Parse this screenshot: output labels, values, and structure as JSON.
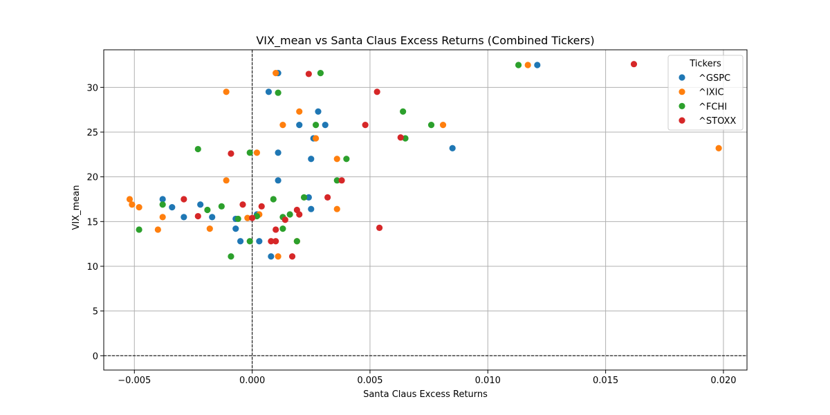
{
  "chart_data": {
    "type": "scatter",
    "title": "VIX_mean vs Santa Claus Excess Returns (Combined Tickers)",
    "xlabel": "Santa Claus Excess Returns",
    "ylabel": "VIX_mean",
    "xlim": [
      -0.0063,
      0.021
    ],
    "ylim": [
      -1.6,
      34.2
    ],
    "xticks": [
      -0.005,
      0.0,
      0.005,
      0.01,
      0.015,
      0.02
    ],
    "xtick_labels": [
      "−0.005",
      "0.000",
      "0.005",
      "0.010",
      "0.015",
      "0.020"
    ],
    "yticks": [
      0,
      5,
      10,
      15,
      20,
      25,
      30
    ],
    "ytick_labels": [
      "0",
      "5",
      "10",
      "15",
      "20",
      "25",
      "30"
    ],
    "grid": true,
    "reference_lines": {
      "x": 0,
      "y": 0
    },
    "legend": {
      "title": "Tickers",
      "placement": "top-right"
    },
    "series": [
      {
        "name": "^GSPC",
        "color": "#1f77b4",
        "points": [
          [
            0.0011,
            31.6
          ],
          [
            0.0007,
            29.5
          ],
          [
            0.0121,
            32.5
          ],
          [
            0.0085,
            23.2
          ],
          [
            0.002,
            25.8
          ],
          [
            0.0031,
            25.8
          ],
          [
            0.0028,
            27.3
          ],
          [
            0.0026,
            24.3
          ],
          [
            0.0025,
            22.0
          ],
          [
            0.0011,
            22.7
          ],
          [
            0.0011,
            19.6
          ],
          [
            -0.0038,
            17.5
          ],
          [
            -0.0034,
            16.6
          ],
          [
            -0.0022,
            16.9
          ],
          [
            -0.0029,
            15.5
          ],
          [
            -0.0017,
            15.5
          ],
          [
            -0.0007,
            15.3
          ],
          [
            0.0002,
            15.8
          ],
          [
            0.0024,
            17.7
          ],
          [
            0.0025,
            16.4
          ],
          [
            -0.0007,
            14.2
          ],
          [
            -0.0005,
            12.8
          ],
          [
            0.0003,
            12.8
          ],
          [
            0.0008,
            11.1
          ]
        ]
      },
      {
        "name": "^IXIC",
        "color": "#ff7f0e",
        "points": [
          [
            0.001,
            31.6
          ],
          [
            -0.0011,
            29.5
          ],
          [
            0.0117,
            32.5
          ],
          [
            0.0198,
            23.2
          ],
          [
            0.002,
            27.3
          ],
          [
            0.0013,
            25.8
          ],
          [
            0.0081,
            25.8
          ],
          [
            0.0027,
            24.3
          ],
          [
            0.0036,
            22.0
          ],
          [
            0.0002,
            22.7
          ],
          [
            -0.0011,
            19.6
          ],
          [
            -0.0052,
            17.5
          ],
          [
            -0.0051,
            16.9
          ],
          [
            -0.0048,
            16.6
          ],
          [
            -0.0038,
            15.5
          ],
          [
            0.0003,
            15.8
          ],
          [
            -0.0002,
            15.4
          ],
          [
            0.0036,
            16.4
          ],
          [
            -0.004,
            14.1
          ],
          [
            -0.0018,
            14.2
          ],
          [
            0.0019,
            12.8
          ],
          [
            0.0011,
            11.1
          ]
        ]
      },
      {
        "name": "^FCHI",
        "color": "#2ca02c",
        "points": [
          [
            0.0029,
            31.6
          ],
          [
            0.0011,
            29.4
          ],
          [
            0.0113,
            32.5
          ],
          [
            0.0064,
            27.3
          ],
          [
            0.0027,
            25.8
          ],
          [
            0.0076,
            25.8
          ],
          [
            0.0065,
            24.3
          ],
          [
            -0.0023,
            23.1
          ],
          [
            -0.0001,
            22.7
          ],
          [
            0.004,
            22.0
          ],
          [
            0.0036,
            19.6
          ],
          [
            -0.0038,
            16.9
          ],
          [
            -0.0013,
            16.7
          ],
          [
            -0.0019,
            16.3
          ],
          [
            0.0009,
            17.5
          ],
          [
            0.0022,
            17.7
          ],
          [
            0.0016,
            15.8
          ],
          [
            0.0013,
            15.5
          ],
          [
            -0.0006,
            15.3
          ],
          [
            0.0002,
            15.6
          ],
          [
            -0.0048,
            14.1
          ],
          [
            0.0013,
            14.2
          ],
          [
            -0.0001,
            12.8
          ],
          [
            0.0019,
            12.8
          ],
          [
            -0.0009,
            11.1
          ]
        ]
      },
      {
        "name": "^STOXX",
        "color": "#d62728",
        "points": [
          [
            0.0024,
            31.5
          ],
          [
            0.0053,
            29.5
          ],
          [
            0.0162,
            32.6
          ],
          [
            0.0048,
            25.8
          ],
          [
            0.0063,
            24.4
          ],
          [
            -0.0009,
            22.6
          ],
          [
            0.0038,
            19.6
          ],
          [
            -0.0029,
            17.5
          ],
          [
            0.0032,
            17.7
          ],
          [
            -0.0004,
            16.9
          ],
          [
            0.0004,
            16.7
          ],
          [
            0.0019,
            16.3
          ],
          [
            -0.0023,
            15.6
          ],
          [
            0.002,
            15.8
          ],
          [
            0.0,
            15.4
          ],
          [
            0.0014,
            15.2
          ],
          [
            0.001,
            14.1
          ],
          [
            0.0054,
            14.3
          ],
          [
            0.0008,
            12.8
          ],
          [
            0.001,
            12.8
          ],
          [
            0.0017,
            11.1
          ]
        ]
      }
    ]
  }
}
